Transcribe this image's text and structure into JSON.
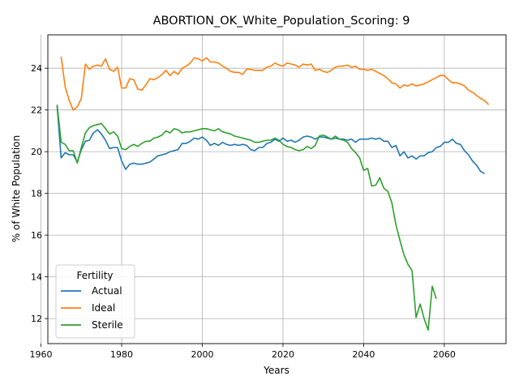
{
  "chart_data": {
    "type": "line",
    "title": "ABORTION_OK_White_Population_Scoring: 9",
    "xlabel": "Years",
    "ylabel": "% of White Population",
    "xlim": [
      1961.7,
      2075.3
    ],
    "ylim": [
      10.8,
      25.6
    ],
    "xticks": [
      1960,
      1980,
      2000,
      2020,
      2040,
      2060
    ],
    "yticks": [
      12,
      14,
      16,
      18,
      20,
      22,
      24
    ],
    "grid": true,
    "legend": {
      "title": "Fertility",
      "placement": "lower-left"
    },
    "series": [
      {
        "name": "Actual",
        "color": "#1f77b4",
        "points": [
          [
            1964,
            22.2
          ],
          [
            1965,
            19.7
          ],
          [
            1966,
            19.95
          ],
          [
            1967,
            19.85
          ],
          [
            1968,
            19.85
          ],
          [
            1969,
            19.5
          ],
          [
            1970,
            20.1
          ],
          [
            1971,
            20.5
          ],
          [
            1972,
            20.55
          ],
          [
            1973,
            20.9
          ],
          [
            1974,
            21.05
          ],
          [
            1975,
            20.85
          ],
          [
            1976,
            20.55
          ],
          [
            1977,
            20.15
          ],
          [
            1978,
            20.2
          ],
          [
            1979,
            20.2
          ],
          [
            1980,
            19.55
          ],
          [
            1981,
            19.15
          ],
          [
            1982,
            19.4
          ],
          [
            1983,
            19.45
          ],
          [
            1984,
            19.4
          ],
          [
            1985,
            19.4
          ],
          [
            1986,
            19.45
          ],
          [
            1987,
            19.5
          ],
          [
            1988,
            19.65
          ],
          [
            1989,
            19.8
          ],
          [
            1990,
            19.85
          ],
          [
            1991,
            19.9
          ],
          [
            1992,
            20.0
          ],
          [
            1993,
            20.05
          ],
          [
            1994,
            20.1
          ],
          [
            1995,
            20.4
          ],
          [
            1996,
            20.4
          ],
          [
            1997,
            20.5
          ],
          [
            1998,
            20.65
          ],
          [
            1999,
            20.6
          ],
          [
            2000,
            20.7
          ],
          [
            2001,
            20.55
          ],
          [
            2002,
            20.3
          ],
          [
            2003,
            20.4
          ],
          [
            2004,
            20.3
          ],
          [
            2005,
            20.45
          ],
          [
            2006,
            20.35
          ],
          [
            2007,
            20.3
          ],
          [
            2008,
            20.35
          ],
          [
            2009,
            20.3
          ],
          [
            2010,
            20.35
          ],
          [
            2011,
            20.3
          ],
          [
            2012,
            20.1
          ],
          [
            2013,
            20.05
          ],
          [
            2014,
            20.2
          ],
          [
            2015,
            20.2
          ],
          [
            2016,
            20.4
          ],
          [
            2017,
            20.45
          ],
          [
            2018,
            20.6
          ],
          [
            2019,
            20.5
          ],
          [
            2020,
            20.65
          ],
          [
            2021,
            20.5
          ],
          [
            2022,
            20.55
          ],
          [
            2023,
            20.45
          ],
          [
            2024,
            20.55
          ],
          [
            2025,
            20.7
          ],
          [
            2026,
            20.75
          ],
          [
            2027,
            20.7
          ],
          [
            2028,
            20.6
          ],
          [
            2029,
            20.7
          ],
          [
            2030,
            20.7
          ],
          [
            2031,
            20.65
          ],
          [
            2032,
            20.6
          ],
          [
            2033,
            20.65
          ],
          [
            2034,
            20.6
          ],
          [
            2035,
            20.6
          ],
          [
            2036,
            20.55
          ],
          [
            2037,
            20.6
          ],
          [
            2038,
            20.45
          ],
          [
            2039,
            20.6
          ],
          [
            2040,
            20.6
          ],
          [
            2041,
            20.6
          ],
          [
            2042,
            20.65
          ],
          [
            2043,
            20.6
          ],
          [
            2044,
            20.65
          ],
          [
            2045,
            20.5
          ],
          [
            2046,
            20.5
          ],
          [
            2047,
            20.2
          ],
          [
            2048,
            20.3
          ],
          [
            2049,
            19.8
          ],
          [
            2050,
            20.0
          ],
          [
            2051,
            19.7
          ],
          [
            2052,
            19.8
          ],
          [
            2053,
            19.65
          ],
          [
            2054,
            19.8
          ],
          [
            2055,
            19.8
          ],
          [
            2056,
            19.95
          ],
          [
            2057,
            20.0
          ],
          [
            2058,
            20.2
          ],
          [
            2059,
            20.25
          ],
          [
            2060,
            20.45
          ],
          [
            2061,
            20.45
          ],
          [
            2062,
            20.6
          ],
          [
            2063,
            20.4
          ],
          [
            2064,
            20.35
          ],
          [
            2065,
            20.05
          ],
          [
            2066,
            19.85
          ],
          [
            2067,
            19.55
          ],
          [
            2068,
            19.35
          ],
          [
            2069,
            19.05
          ],
          [
            2070,
            18.95
          ]
        ]
      },
      {
        "name": "Ideal",
        "color": "#ff7f0e",
        "points": [
          [
            1965,
            24.55
          ],
          [
            1966,
            23.1
          ],
          [
            1967,
            22.45
          ],
          [
            1968,
            22.0
          ],
          [
            1969,
            22.15
          ],
          [
            1970,
            22.55
          ],
          [
            1971,
            24.2
          ],
          [
            1972,
            23.95
          ],
          [
            1973,
            24.1
          ],
          [
            1974,
            24.15
          ],
          [
            1975,
            24.1
          ],
          [
            1976,
            24.45
          ],
          [
            1977,
            23.95
          ],
          [
            1978,
            23.85
          ],
          [
            1979,
            24.05
          ],
          [
            1980,
            23.05
          ],
          [
            1981,
            23.05
          ],
          [
            1982,
            23.5
          ],
          [
            1983,
            23.45
          ],
          [
            1984,
            23.0
          ],
          [
            1985,
            22.95
          ],
          [
            1986,
            23.2
          ],
          [
            1987,
            23.5
          ],
          [
            1988,
            23.45
          ],
          [
            1989,
            23.55
          ],
          [
            1990,
            23.7
          ],
          [
            1991,
            23.9
          ],
          [
            1992,
            23.65
          ],
          [
            1993,
            23.85
          ],
          [
            1994,
            23.7
          ],
          [
            1995,
            24.0
          ],
          [
            1996,
            24.1
          ],
          [
            1997,
            24.25
          ],
          [
            1998,
            24.5
          ],
          [
            1999,
            24.45
          ],
          [
            2000,
            24.35
          ],
          [
            2001,
            24.5
          ],
          [
            2002,
            24.3
          ],
          [
            2003,
            24.3
          ],
          [
            2004,
            24.25
          ],
          [
            2005,
            24.1
          ],
          [
            2006,
            24.0
          ],
          [
            2007,
            23.85
          ],
          [
            2008,
            23.8
          ],
          [
            2009,
            23.8
          ],
          [
            2010,
            23.7
          ],
          [
            2011,
            23.95
          ],
          [
            2012,
            23.95
          ],
          [
            2013,
            23.9
          ],
          [
            2014,
            23.9
          ],
          [
            2015,
            23.9
          ],
          [
            2016,
            24.05
          ],
          [
            2017,
            24.1
          ],
          [
            2018,
            24.25
          ],
          [
            2019,
            24.15
          ],
          [
            2020,
            24.1
          ],
          [
            2021,
            24.25
          ],
          [
            2022,
            24.2
          ],
          [
            2023,
            24.15
          ],
          [
            2024,
            24.05
          ],
          [
            2025,
            24.2
          ],
          [
            2026,
            24.15
          ],
          [
            2027,
            24.2
          ],
          [
            2028,
            23.9
          ],
          [
            2029,
            23.95
          ],
          [
            2030,
            23.85
          ],
          [
            2031,
            23.8
          ],
          [
            2032,
            23.9
          ],
          [
            2033,
            24.05
          ],
          [
            2034,
            24.1
          ],
          [
            2035,
            24.1
          ],
          [
            2036,
            24.15
          ],
          [
            2037,
            24.05
          ],
          [
            2038,
            24.1
          ],
          [
            2039,
            23.95
          ],
          [
            2040,
            23.95
          ],
          [
            2041,
            23.9
          ],
          [
            2042,
            23.95
          ],
          [
            2043,
            23.85
          ],
          [
            2044,
            23.75
          ],
          [
            2045,
            23.65
          ],
          [
            2046,
            23.5
          ],
          [
            2047,
            23.3
          ],
          [
            2048,
            23.25
          ],
          [
            2049,
            23.05
          ],
          [
            2050,
            23.2
          ],
          [
            2051,
            23.15
          ],
          [
            2052,
            23.25
          ],
          [
            2053,
            23.15
          ],
          [
            2054,
            23.2
          ],
          [
            2055,
            23.25
          ],
          [
            2056,
            23.35
          ],
          [
            2057,
            23.45
          ],
          [
            2058,
            23.55
          ],
          [
            2059,
            23.65
          ],
          [
            2060,
            23.65
          ],
          [
            2061,
            23.45
          ],
          [
            2062,
            23.3
          ],
          [
            2063,
            23.3
          ],
          [
            2064,
            23.25
          ],
          [
            2065,
            23.15
          ],
          [
            2066,
            22.95
          ],
          [
            2067,
            22.85
          ],
          [
            2068,
            22.7
          ],
          [
            2069,
            22.55
          ],
          [
            2070,
            22.45
          ],
          [
            2071,
            22.25
          ]
        ]
      },
      {
        "name": "Sterile",
        "color": "#2ca02c",
        "points": [
          [
            1964,
            22.25
          ],
          [
            1965,
            20.45
          ],
          [
            1966,
            20.35
          ],
          [
            1967,
            20.05
          ],
          [
            1968,
            20.05
          ],
          [
            1969,
            19.45
          ],
          [
            1970,
            20.2
          ],
          [
            1971,
            20.9
          ],
          [
            1972,
            21.15
          ],
          [
            1973,
            21.25
          ],
          [
            1974,
            21.3
          ],
          [
            1975,
            21.35
          ],
          [
            1976,
            21.1
          ],
          [
            1977,
            20.85
          ],
          [
            1978,
            20.95
          ],
          [
            1979,
            20.75
          ],
          [
            1980,
            20.15
          ],
          [
            1981,
            20.1
          ],
          [
            1982,
            20.25
          ],
          [
            1983,
            20.35
          ],
          [
            1984,
            20.25
          ],
          [
            1985,
            20.4
          ],
          [
            1986,
            20.5
          ],
          [
            1987,
            20.5
          ],
          [
            1988,
            20.65
          ],
          [
            1989,
            20.7
          ],
          [
            1990,
            20.8
          ],
          [
            1991,
            21.0
          ],
          [
            1992,
            20.9
          ],
          [
            1993,
            21.1
          ],
          [
            1994,
            21.05
          ],
          [
            1995,
            20.9
          ],
          [
            1996,
            20.95
          ],
          [
            1997,
            20.95
          ],
          [
            1998,
            21.0
          ],
          [
            1999,
            21.05
          ],
          [
            2000,
            21.1
          ],
          [
            2001,
            21.1
          ],
          [
            2002,
            21.05
          ],
          [
            2003,
            21.0
          ],
          [
            2004,
            21.1
          ],
          [
            2005,
            20.95
          ],
          [
            2006,
            20.9
          ],
          [
            2007,
            20.85
          ],
          [
            2008,
            20.75
          ],
          [
            2009,
            20.7
          ],
          [
            2010,
            20.65
          ],
          [
            2011,
            20.6
          ],
          [
            2012,
            20.55
          ],
          [
            2013,
            20.45
          ],
          [
            2014,
            20.45
          ],
          [
            2015,
            20.5
          ],
          [
            2016,
            20.55
          ],
          [
            2017,
            20.55
          ],
          [
            2018,
            20.65
          ],
          [
            2019,
            20.55
          ],
          [
            2020,
            20.35
          ],
          [
            2021,
            20.25
          ],
          [
            2022,
            20.2
          ],
          [
            2023,
            20.1
          ],
          [
            2024,
            20.05
          ],
          [
            2025,
            20.1
          ],
          [
            2026,
            20.25
          ],
          [
            2027,
            20.15
          ],
          [
            2028,
            20.3
          ],
          [
            2029,
            20.75
          ],
          [
            2030,
            20.8
          ],
          [
            2031,
            20.7
          ],
          [
            2032,
            20.6
          ],
          [
            2033,
            20.75
          ],
          [
            2034,
            20.6
          ],
          [
            2035,
            20.55
          ],
          [
            2036,
            20.45
          ],
          [
            2037,
            20.15
          ],
          [
            2038,
            19.95
          ],
          [
            2039,
            19.7
          ],
          [
            2040,
            19.1
          ],
          [
            2041,
            19.2
          ],
          [
            2042,
            18.35
          ],
          [
            2043,
            18.4
          ],
          [
            2044,
            18.75
          ],
          [
            2045,
            18.25
          ],
          [
            2046,
            18.1
          ],
          [
            2047,
            17.55
          ],
          [
            2048,
            16.5
          ],
          [
            2049,
            15.75
          ],
          [
            2050,
            15.05
          ],
          [
            2051,
            14.6
          ],
          [
            2052,
            14.3
          ],
          [
            2053,
            12.05
          ],
          [
            2054,
            12.7
          ],
          [
            2055,
            12.0
          ],
          [
            2056,
            11.45
          ],
          [
            2057,
            13.55
          ],
          [
            2058,
            12.95
          ]
        ]
      }
    ]
  }
}
